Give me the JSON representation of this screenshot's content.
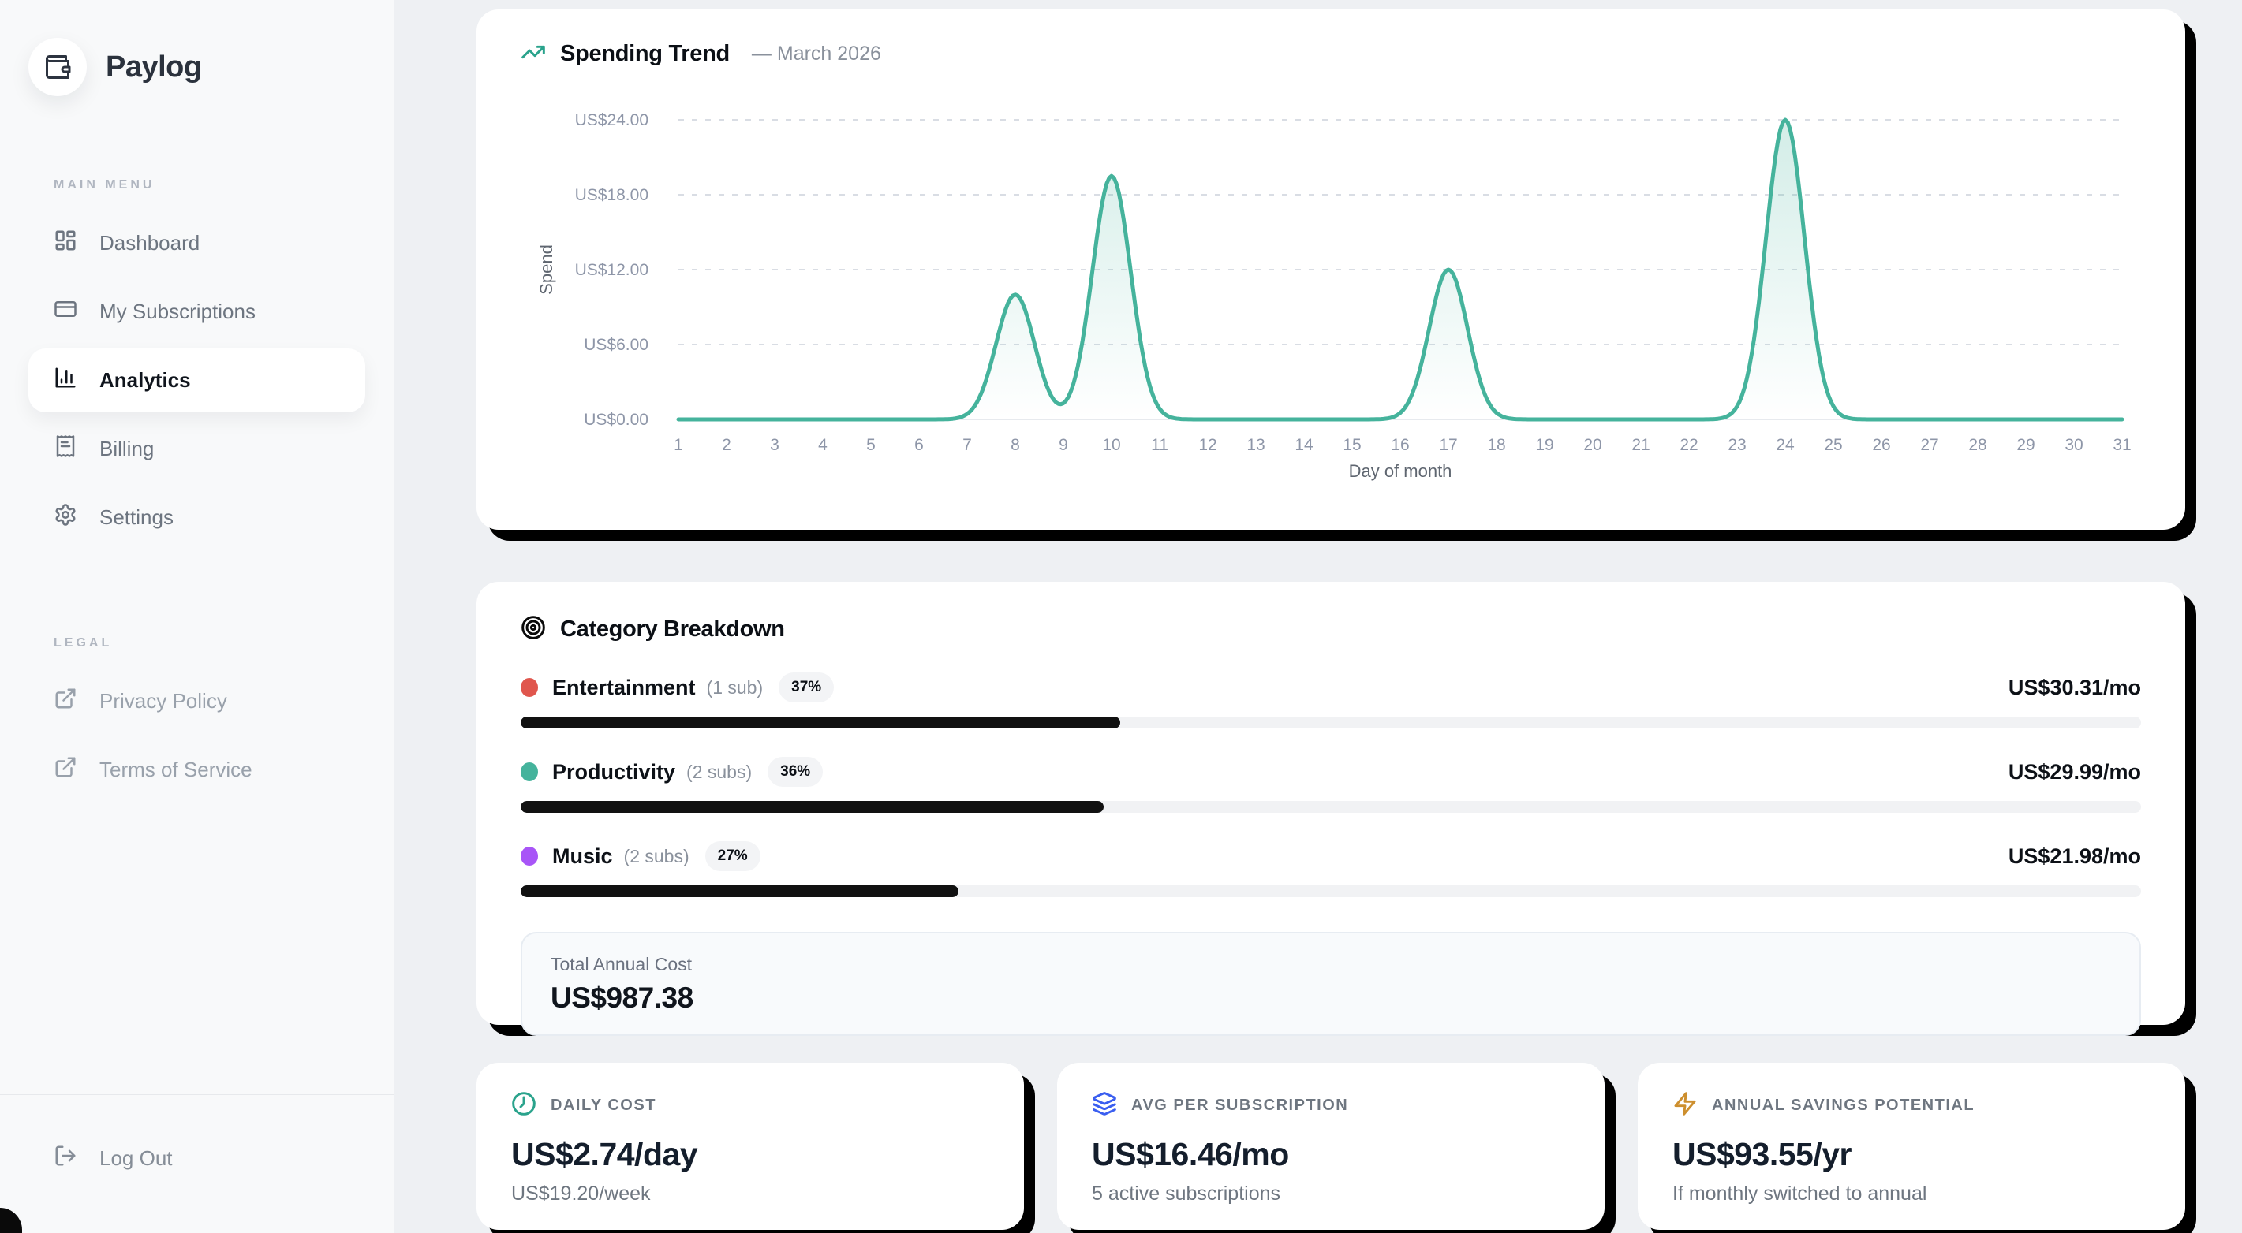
{
  "app": {
    "name": "Paylog"
  },
  "sidebar": {
    "sections": [
      {
        "label": "MAIN MENU",
        "items": [
          {
            "label": "Dashboard",
            "icon": "dashboard-icon",
            "active": false
          },
          {
            "label": "My Subscriptions",
            "icon": "credit-card-icon",
            "active": false
          },
          {
            "label": "Analytics",
            "icon": "bar-chart-icon",
            "active": true
          },
          {
            "label": "Billing",
            "icon": "receipt-icon",
            "active": false
          },
          {
            "label": "Settings",
            "icon": "gear-icon",
            "active": false
          }
        ]
      },
      {
        "label": "LEGAL",
        "items": [
          {
            "label": "Privacy Policy",
            "icon": "external-link-icon"
          },
          {
            "label": "Terms of Service",
            "icon": "external-link-icon"
          }
        ]
      }
    ],
    "logout_label": "Log Out"
  },
  "spending_trend": {
    "title": "Spending Trend",
    "subtitle": "— March 2026"
  },
  "chart_data": {
    "type": "area",
    "title": "Spending Trend — March 2026",
    "xlabel": "Day of month",
    "ylabel": "Spend",
    "x": [
      1,
      2,
      3,
      4,
      5,
      6,
      7,
      8,
      9,
      10,
      11,
      12,
      13,
      14,
      15,
      16,
      17,
      18,
      19,
      20,
      21,
      22,
      23,
      24,
      25,
      26,
      27,
      28,
      29,
      30,
      31
    ],
    "values": [
      0,
      0,
      0,
      0,
      0,
      0,
      0,
      10,
      0,
      19.5,
      0,
      0,
      0,
      0,
      0,
      0,
      12,
      0,
      0,
      0,
      0,
      0,
      0,
      24,
      0,
      0,
      0,
      0,
      0,
      0,
      0
    ],
    "y_ticks": [
      "US$24.00",
      "US$18.00",
      "US$12.00",
      "US$6.00",
      "US$0.00"
    ],
    "ylim": [
      0,
      24
    ],
    "grid": "dashed-horizontal",
    "line_color": "#45b39c",
    "fill_color_top": "rgba(69,179,156,0.24)",
    "fill_color_bottom": "rgba(69,179,156,0)",
    "axis_text_color": "#8e96a8",
    "axis_label_color": "#5f6670"
  },
  "category_breakdown": {
    "title": "Category Breakdown",
    "rows": [
      {
        "name": "Entertainment",
        "subs": "(1 sub)",
        "pct": "37%",
        "pct_value": 37,
        "amount": "US$30.31/mo",
        "color": "#e0564d"
      },
      {
        "name": "Productivity",
        "subs": "(2 subs)",
        "pct": "36%",
        "pct_value": 36,
        "amount": "US$29.99/mo",
        "color": "#45b39c"
      },
      {
        "name": "Music",
        "subs": "(2 subs)",
        "pct": "27%",
        "pct_value": 27,
        "amount": "US$21.98/mo",
        "color": "#a855f7"
      }
    ],
    "bar_fill_color": "#111111",
    "total": {
      "label": "Total Annual Cost",
      "value": "US$987.38"
    }
  },
  "stats": [
    {
      "label": "DAILY COST",
      "value": "US$2.74/day",
      "sub": "US$19.20/week",
      "icon": "clock-icon",
      "icon_color": "#2aa38c"
    },
    {
      "label": "AVG PER SUBSCRIPTION",
      "value": "US$16.46/mo",
      "sub": "5 active subscriptions",
      "icon": "layers-icon",
      "icon_color": "#3a5ef0"
    },
    {
      "label": "ANNUAL SAVINGS POTENTIAL",
      "value": "US$93.55/yr",
      "sub": "If monthly switched to annual",
      "icon": "zap-icon",
      "icon_color": "#cd8f2e"
    }
  ]
}
